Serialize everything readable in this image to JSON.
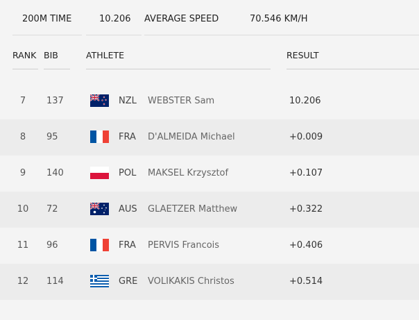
{
  "summary": {
    "time_label": "200M TIME",
    "time_value": "10.206",
    "speed_label": "AVERAGE SPEED",
    "speed_value": "70.546 KM/H"
  },
  "table": {
    "headers": {
      "rank": "RANK",
      "bib": "BIB",
      "athlete": "ATHLETE",
      "result": "RESULT"
    },
    "rows": [
      {
        "rank": "7",
        "bib": "137",
        "flag": "nzl-flag-icon",
        "noc": "NZL",
        "athlete": "WEBSTER Sam",
        "result": "10.206"
      },
      {
        "rank": "8",
        "bib": "95",
        "flag": "fra-flag-icon",
        "noc": "FRA",
        "athlete": "D'ALMEIDA Michael",
        "result": "+0.009"
      },
      {
        "rank": "9",
        "bib": "140",
        "flag": "pol-flag-icon",
        "noc": "POL",
        "athlete": "MAKSEL Krzysztof",
        "result": "+0.107"
      },
      {
        "rank": "10",
        "bib": "72",
        "flag": "aus-flag-icon",
        "noc": "AUS",
        "athlete": "GLAETZER Matthew",
        "result": "+0.322"
      },
      {
        "rank": "11",
        "bib": "96",
        "flag": "fra-flag-icon",
        "noc": "FRA",
        "athlete": "PERVIS Francois",
        "result": "+0.406"
      },
      {
        "rank": "12",
        "bib": "114",
        "flag": "gre-flag-icon",
        "noc": "GRE",
        "athlete": "VOLIKAKIS Christos",
        "result": "+0.514"
      }
    ]
  },
  "colors": {
    "background": "#f4f4f4",
    "alt_row": "#ececec",
    "fra_blue": "#0055a4",
    "fra_red": "#ef4135",
    "pol_red": "#dc143c",
    "navy": "#012169",
    "gre_blue": "#0d5eaf"
  }
}
